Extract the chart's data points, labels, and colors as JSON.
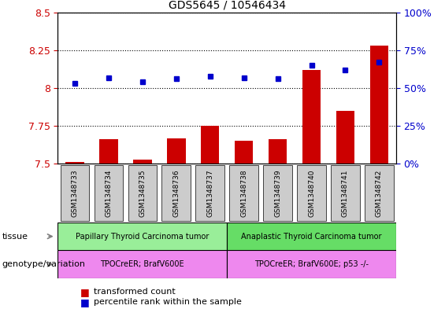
{
  "title": "GDS5645 / 10546434",
  "samples": [
    "GSM1348733",
    "GSM1348734",
    "GSM1348735",
    "GSM1348736",
    "GSM1348737",
    "GSM1348738",
    "GSM1348739",
    "GSM1348740",
    "GSM1348741",
    "GSM1348742"
  ],
  "bar_values": [
    7.51,
    7.66,
    7.53,
    7.67,
    7.75,
    7.65,
    7.66,
    8.12,
    7.85,
    8.28
  ],
  "dot_values": [
    53,
    57,
    54,
    56,
    58,
    57,
    56,
    65,
    62,
    67
  ],
  "ylim_left": [
    7.5,
    8.5
  ],
  "ylim_right": [
    0,
    100
  ],
  "yticks_left": [
    7.5,
    7.75,
    8.0,
    8.25,
    8.5
  ],
  "yticks_right": [
    0,
    25,
    50,
    75,
    100
  ],
  "ytick_labels_right": [
    "0%",
    "25%",
    "50%",
    "75%",
    "100%"
  ],
  "bar_color": "#cc0000",
  "dot_color": "#0000cc",
  "bar_width": 0.55,
  "tissue_labels": [
    "Papillary Thyroid Carcinoma tumor",
    "Anaplastic Thyroid Carcinoma tumor"
  ],
  "tissue_color1": "#99ee99",
  "tissue_color2": "#66dd66",
  "tissue_split": 5,
  "genotype_labels": [
    "TPOCreER; BrafV600E",
    "TPOCreER; BrafV600E; p53 -/-"
  ],
  "genotype_color": "#ee88ee",
  "tissue_row_label": "tissue",
  "genotype_row_label": "genotype/variation",
  "legend_bar_label": "transformed count",
  "legend_dot_label": "percentile rank within the sample",
  "tick_label_color_left": "#cc0000",
  "tick_label_color_right": "#0000cc",
  "sample_box_color": "#cccccc",
  "ytick_label_left": [
    "7.5",
    "7.75",
    "8",
    "8.25",
    "8.5"
  ]
}
